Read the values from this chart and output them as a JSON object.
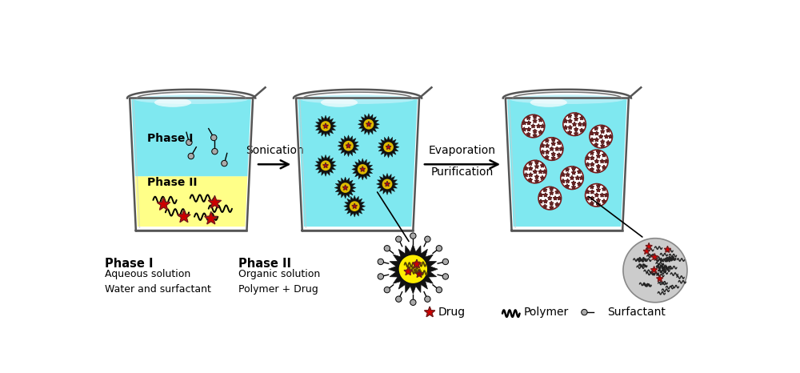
{
  "background": "#ffffff",
  "arrow1_label": "Sonication",
  "arrow2_label1": "Evaporation",
  "arrow2_label2": "Purification",
  "phase1_label": "Phase I",
  "phase2_label": "Phase II",
  "legend_drug": "Drug",
  "legend_polymer": "Polymer",
  "legend_surfactant": "Surfactant",
  "bottom_phase1_title": "Phase I",
  "bottom_phase1_line1": "Aqueous solution",
  "bottom_phase1_line2": "Water and surfactant",
  "bottom_phase2_title": "Phase II",
  "bottom_phase2_line1": "Organic solution",
  "bottom_phase2_line2": "Polymer + Drug",
  "water_color": "#7fe8f0",
  "water_color_light": "#b8f0f8",
  "yellow_color": "#ffff88",
  "drug_color": "#cc0000",
  "nanosphere_color": "#7a1a1a",
  "nanosphere_bg": "#e8c8c8",
  "surfactant_color": "#aaaaaa",
  "blob_color": "#111111"
}
